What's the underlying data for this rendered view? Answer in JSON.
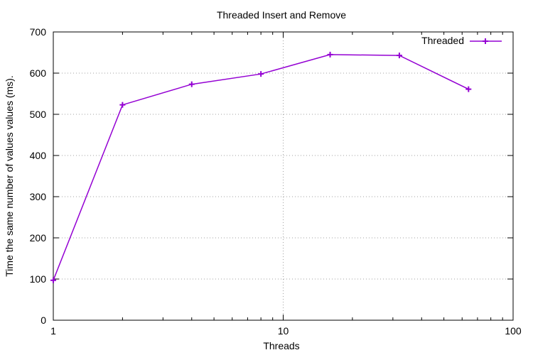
{
  "chart_data": {
    "type": "line",
    "title": "Threaded Insert and Remove",
    "xlabel": "Threads",
    "ylabel": "Time the same number of values values (ms).",
    "x_scale": "log",
    "xlim": [
      1,
      100
    ],
    "ylim": [
      0,
      700
    ],
    "x_ticks": [
      {
        "value": 1,
        "label": "1"
      },
      {
        "value": 10,
        "label": "10"
      },
      {
        "value": 100,
        "label": "100"
      }
    ],
    "y_ticks": [
      {
        "value": 0,
        "label": "0"
      },
      {
        "value": 100,
        "label": "100"
      },
      {
        "value": 200,
        "label": "200"
      },
      {
        "value": 300,
        "label": "300"
      },
      {
        "value": 400,
        "label": "400"
      },
      {
        "value": 500,
        "label": "500"
      },
      {
        "value": 600,
        "label": "600"
      },
      {
        "value": 700,
        "label": "700"
      }
    ],
    "grid": true,
    "legend_position": "top-right",
    "series": [
      {
        "name": "Threaded",
        "color": "#9400d3",
        "marker": "plus",
        "points": [
          {
            "x": 1,
            "y": 97
          },
          {
            "x": 2,
            "y": 523
          },
          {
            "x": 4,
            "y": 573
          },
          {
            "x": 8,
            "y": 598
          },
          {
            "x": 16,
            "y": 645
          },
          {
            "x": 32,
            "y": 643
          },
          {
            "x": 64,
            "y": 561
          }
        ]
      }
    ]
  }
}
